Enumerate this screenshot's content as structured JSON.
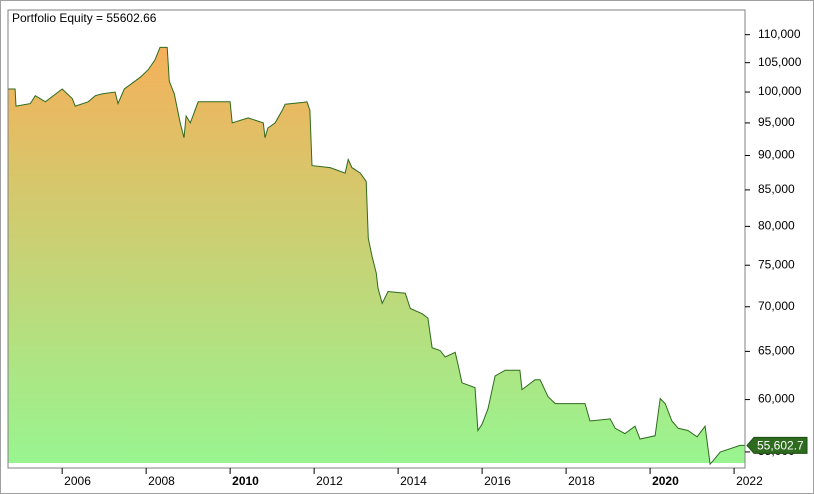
{
  "chart_data": {
    "type": "area",
    "title": "Portfolio Equity = 55602.66",
    "x": [
      2004.71,
      2004.88,
      2004.9,
      2005.24,
      2005.36,
      2005.6,
      2006.0,
      2006.24,
      2006.31,
      2006.62,
      2006.79,
      2006.95,
      2007.26,
      2007.33,
      2007.48,
      2007.86,
      2008.05,
      2008.21,
      2008.33,
      2008.5,
      2008.55,
      2008.67,
      2008.81,
      2008.9,
      2008.95,
      2009.05,
      2009.24,
      2010.0,
      2010.05,
      2010.43,
      2010.79,
      2010.83,
      2010.9,
      2011.07,
      2011.24,
      2011.31,
      2011.74,
      2011.83,
      2011.9,
      2011.95,
      2012.38,
      2012.74,
      2012.81,
      2012.9,
      2013.1,
      2013.24,
      2013.29,
      2013.38,
      2013.48,
      2013.52,
      2013.62,
      2013.76,
      2014.17,
      2014.29,
      2014.57,
      2014.71,
      2014.81,
      2015.0,
      2015.12,
      2015.36,
      2015.43,
      2015.52,
      2015.83,
      2015.9,
      2016.0,
      2016.14,
      2016.31,
      2016.55,
      2016.9,
      2016.95,
      2017.26,
      2017.38,
      2017.57,
      2017.74,
      2017.86,
      2018.45,
      2018.57,
      2019.05,
      2019.17,
      2019.4,
      2019.64,
      2019.76,
      2020.12,
      2020.24,
      2020.36,
      2020.52,
      2020.67,
      2020.9,
      2021.12,
      2021.31,
      2021.43,
      2021.5,
      2021.67,
      2022.14,
      2022.26
    ],
    "series": [
      {
        "name": "Portfolio Equity",
        "color": "#2e6b1e",
        "values": [
          100500,
          100500,
          97700,
          98100,
          99400,
          98400,
          100500,
          98900,
          97700,
          98400,
          99400,
          99700,
          100000,
          98100,
          100500,
          102500,
          103800,
          105500,
          107700,
          107700,
          101800,
          99700,
          95000,
          92700,
          96100,
          95000,
          98400,
          98400,
          95000,
          95800,
          95000,
          92700,
          94200,
          95000,
          97000,
          98000,
          98300,
          98400,
          97000,
          88500,
          88200,
          87400,
          89400,
          88200,
          87400,
          86200,
          78400,
          76100,
          74000,
          72200,
          70400,
          71800,
          71600,
          69800,
          69200,
          68700,
          65400,
          65100,
          64400,
          64900,
          63500,
          61700,
          61200,
          57000,
          57600,
          59100,
          62400,
          63000,
          63000,
          61000,
          62000,
          62000,
          60300,
          59600,
          59600,
          59600,
          57900,
          58100,
          57200,
          56700,
          57400,
          56200,
          56500,
          60100,
          59600,
          57900,
          57200,
          57000,
          56400,
          57400,
          53900,
          54200,
          55000,
          55602.66,
          55602.66
        ]
      }
    ],
    "last_value": 55602.66,
    "last_value_label": "55,602.7",
    "xlim": [
      2004.71,
      2022.26
    ],
    "xticks": [
      2006,
      2008,
      2010,
      2012,
      2014,
      2016,
      2018,
      2020,
      2022
    ],
    "ylim": [
      54000,
      114600
    ],
    "log_scale": true,
    "yticks": [
      {
        "value": 55000,
        "label": "55,000"
      },
      {
        "value": 60000,
        "label": "60,000"
      },
      {
        "value": 65000,
        "label": "65,000"
      },
      {
        "value": 70000,
        "label": "70,000"
      },
      {
        "value": 75000,
        "label": "75,000"
      },
      {
        "value": 80000,
        "label": "80,000"
      },
      {
        "value": 85000,
        "label": "85,000"
      },
      {
        "value": 90000,
        "label": "90,000"
      },
      {
        "value": 95000,
        "label": "95,000"
      },
      {
        "value": 100000,
        "label": "100,000"
      },
      {
        "value": 105000,
        "label": "105,000"
      },
      {
        "value": 110000,
        "label": "110,000"
      }
    ],
    "gradient": [
      "#f5b05a",
      "#98f590"
    ]
  }
}
